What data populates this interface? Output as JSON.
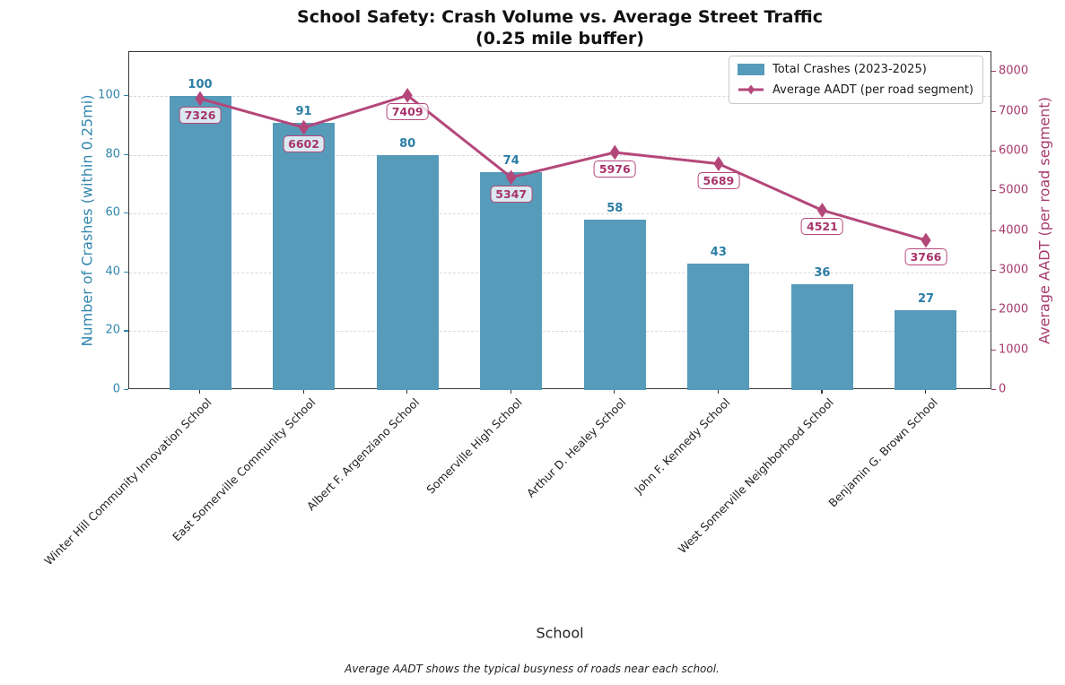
{
  "chart_data": {
    "type": "bar",
    "title": "School Safety: Crash Volume vs. Average Street Traffic\n(0.25 mile buffer)",
    "title_line1": "School Safety: Crash Volume vs. Average Street Traffic",
    "title_line2": "(0.25 mile buffer)",
    "xlabel": "School",
    "ylabel_left": "Number of Crashes (within 0.25mi)",
    "ylabel_right": "Average AADT (per road segment)",
    "footnote": "Average AADT shows the typical busyness of roads near each school.",
    "categories": [
      "Winter Hill Community Innovation School",
      "East Somerville Community School",
      "Albert F. Argenziano School",
      "Somerville High School",
      "Arthur D. Healey School",
      "John F. Kennedy School",
      "West Somerville Neighborhood School",
      "Benjamin G. Brown School"
    ],
    "series": [
      {
        "name": "Total Crashes (2023-2025)",
        "type": "bar",
        "axis": "left",
        "values": [
          100,
          91,
          80,
          74,
          58,
          43,
          36,
          27
        ],
        "color": "#569bb9"
      },
      {
        "name": "Average AADT (per road segment)",
        "type": "line",
        "axis": "right",
        "marker": "thin-diamond",
        "values": [
          7326,
          6602,
          7409,
          5347,
          5976,
          5689,
          4521,
          3766
        ],
        "color": "#b4477a"
      }
    ],
    "ylim_left": [
      0,
      115
    ],
    "ylim_right": [
      0,
      8500
    ],
    "yticks_left": [
      0,
      20,
      40,
      60,
      80,
      100
    ],
    "yticks_right": [
      0,
      1000,
      2000,
      3000,
      4000,
      5000,
      6000,
      7000,
      8000
    ],
    "grid": "horizontal dashed",
    "legend_position": "upper right",
    "colors": {
      "bar_fill": "#569bb9",
      "bar_value_text": "#2b7ea6",
      "left_axis_text": "#3186ae",
      "line": "#b4477a",
      "right_axis_text": "#a63a6e",
      "aadt_label_text": "#a8336b",
      "grid_line": "#d9d9d9",
      "spine": "#3a3a3a"
    }
  }
}
